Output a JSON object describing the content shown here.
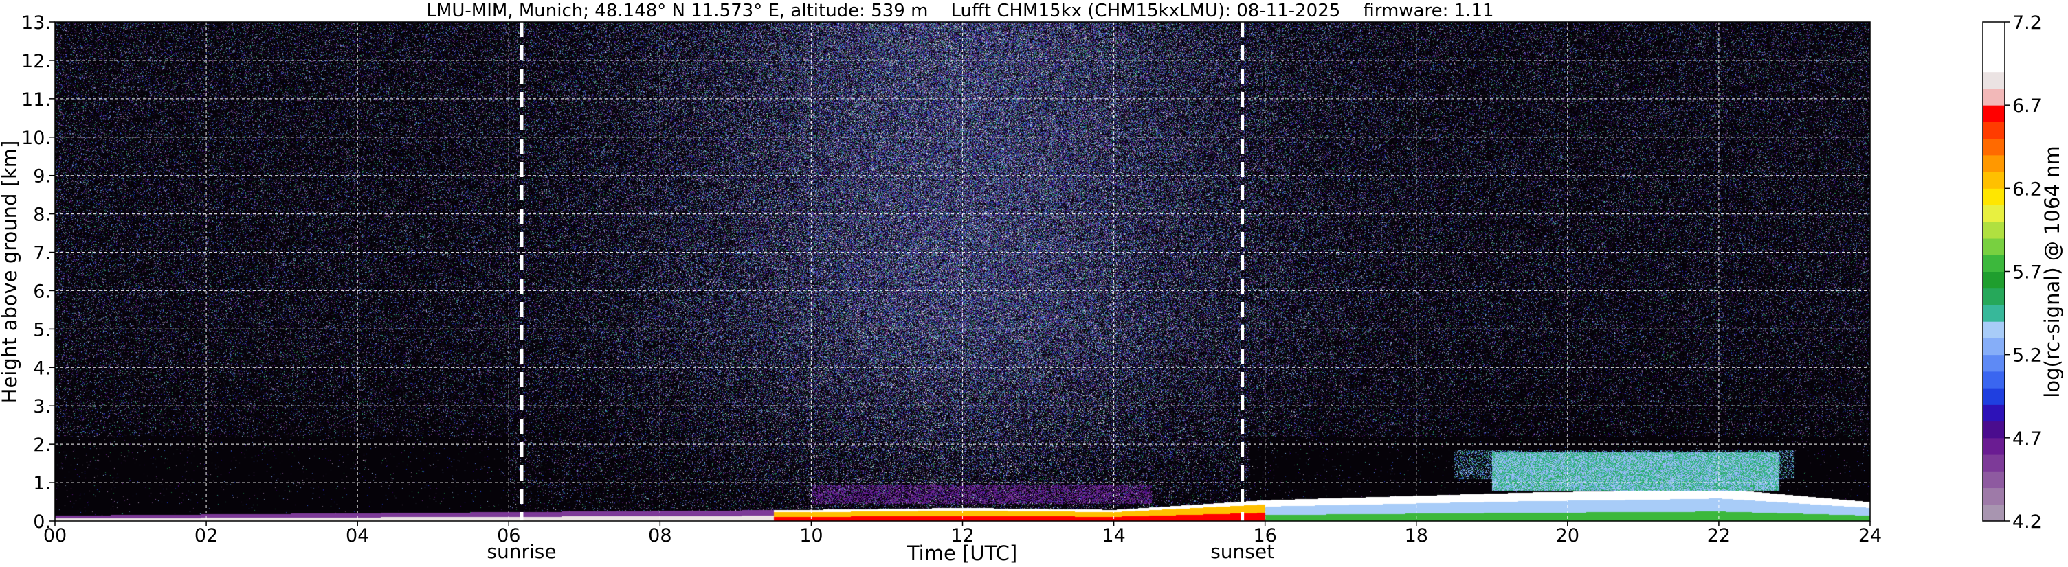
{
  "chart_data": {
    "type": "heatmap",
    "title": "LMU-MIM, Munich; 48.148° N 11.573° E, altitude: 539 m    Lufft CHM15kx (CHM15kxLMU): 08-11-2025    firmware: 1.11",
    "xlabel": "Time [UTC]",
    "ylabel": "Height above ground [km]",
    "xlim": [
      0,
      24
    ],
    "ylim": [
      0,
      13
    ],
    "x_ticks": [
      "00",
      "02",
      "04",
      "06",
      "08",
      "10",
      "12",
      "14",
      "16",
      "18",
      "20",
      "22",
      "24"
    ],
    "y_ticks": [
      "0.",
      "1.",
      "2.",
      "3.",
      "4.",
      "5.",
      "6.",
      "7.",
      "8.",
      "9.",
      "10.",
      "11.",
      "12.",
      "13."
    ],
    "grid": true,
    "colorbar": {
      "label": "log(rc-signal) @ 1064 nm",
      "range": [
        4.2,
        7.2
      ],
      "ticks": [
        "4.2",
        "4.7",
        "5.2",
        "5.7",
        "6.2",
        "6.7",
        "7.2"
      ],
      "colors": [
        "#a895b0",
        "#9e7aa8",
        "#8e5aa0",
        "#7d3a98",
        "#6a1c92",
        "#4a0c8e",
        "#2d12b8",
        "#1f3fe0",
        "#3a66f0",
        "#5e8af5",
        "#86aef8",
        "#a8ccf8",
        "#37b89a",
        "#26a85a",
        "#1f9e2e",
        "#3cb83c",
        "#78d040",
        "#b0e040",
        "#e8f040",
        "#ffe600",
        "#ffc000",
        "#ff9800",
        "#ff6a00",
        "#ff3c00",
        "#ff0000",
        "#f2b8b8",
        "#ebe3e3",
        "#ffffff",
        "#ffffff",
        "#ffffff"
      ]
    },
    "events": [
      {
        "label": "sunrise",
        "x": 6.17
      },
      {
        "label": "sunset",
        "x": 15.7
      }
    ],
    "features": {
      "noise_top_km": 13,
      "daylight_noise_peak_hour": 12,
      "aerosol_layer_top_km": {
        "0": 0.15,
        "10": 0.3,
        "12": 0.35,
        "14": 0.3,
        "16": 0.55,
        "19.5": 0.75,
        "21": 0.8,
        "22": 0.85,
        "24": 0.5
      },
      "elevated_cloud_km": [
        1.1,
        1.85
      ],
      "elevated_cloud_hours": [
        18.5,
        23
      ]
    }
  }
}
